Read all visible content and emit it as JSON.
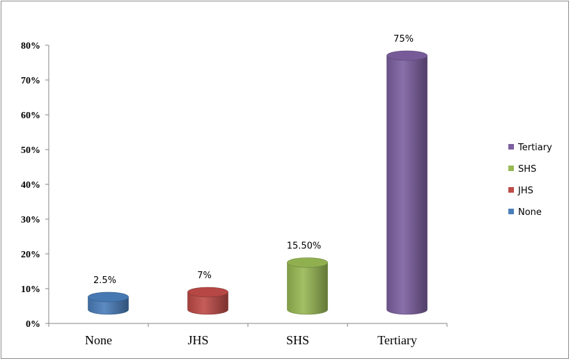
{
  "chart_data": {
    "type": "bar",
    "style": "3d-cylinder",
    "categories": [
      "None",
      "JHS",
      "SHS",
      "Tertiary"
    ],
    "values": [
      2.5,
      7,
      15.5,
      75
    ],
    "data_labels": [
      "2.5%",
      "7%",
      "15.50%",
      "75%"
    ],
    "colors": [
      "#4a7ebb",
      "#be4b48",
      "#98b954",
      "#7d60a0"
    ],
    "title": "",
    "xlabel": "",
    "ylabel": "",
    "ylim": [
      0,
      80
    ],
    "yticks": [
      0,
      10,
      20,
      30,
      40,
      50,
      60,
      70,
      80
    ],
    "ytick_labels": [
      "0%",
      "10%",
      "20%",
      "30%",
      "40%",
      "50%",
      "60%",
      "70%",
      "80%"
    ],
    "grid": false,
    "legend": {
      "placement": "right",
      "entries": [
        "Tertiary",
        "SHS",
        "JHS",
        "None"
      ]
    }
  }
}
